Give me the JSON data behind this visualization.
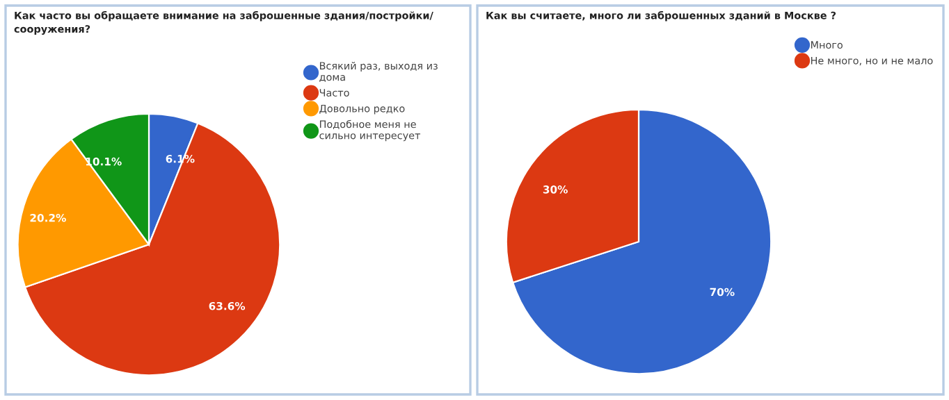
{
  "chart_data": [
    {
      "type": "pie",
      "title": "Как часто вы обращаете внимание на заброшенные здания/постройки/\nсооружения?",
      "categories": [
        "Всякий раз, выходя из\nдома",
        "Часто",
        "Довольно редко",
        "Подобное меня не\nсильно интересует"
      ],
      "values": [
        6.1,
        63.6,
        20.2,
        10.1
      ],
      "colors": [
        "#3366cc",
        "#dc3912",
        "#ff9900",
        "#109618"
      ],
      "value_labels": [
        "6.1%",
        "63.6%",
        "20.2%",
        "10.1%"
      ],
      "legend": "right"
    },
    {
      "type": "pie",
      "title": "Как вы считаете, много ли заброшенных зданий в Москве ?",
      "categories": [
        "Много",
        "Не много, но и не мало"
      ],
      "values": [
        70,
        30
      ],
      "colors": [
        "#3366cc",
        "#dc3912"
      ],
      "value_labels": [
        "70%",
        "30%"
      ],
      "legend": "right"
    }
  ]
}
